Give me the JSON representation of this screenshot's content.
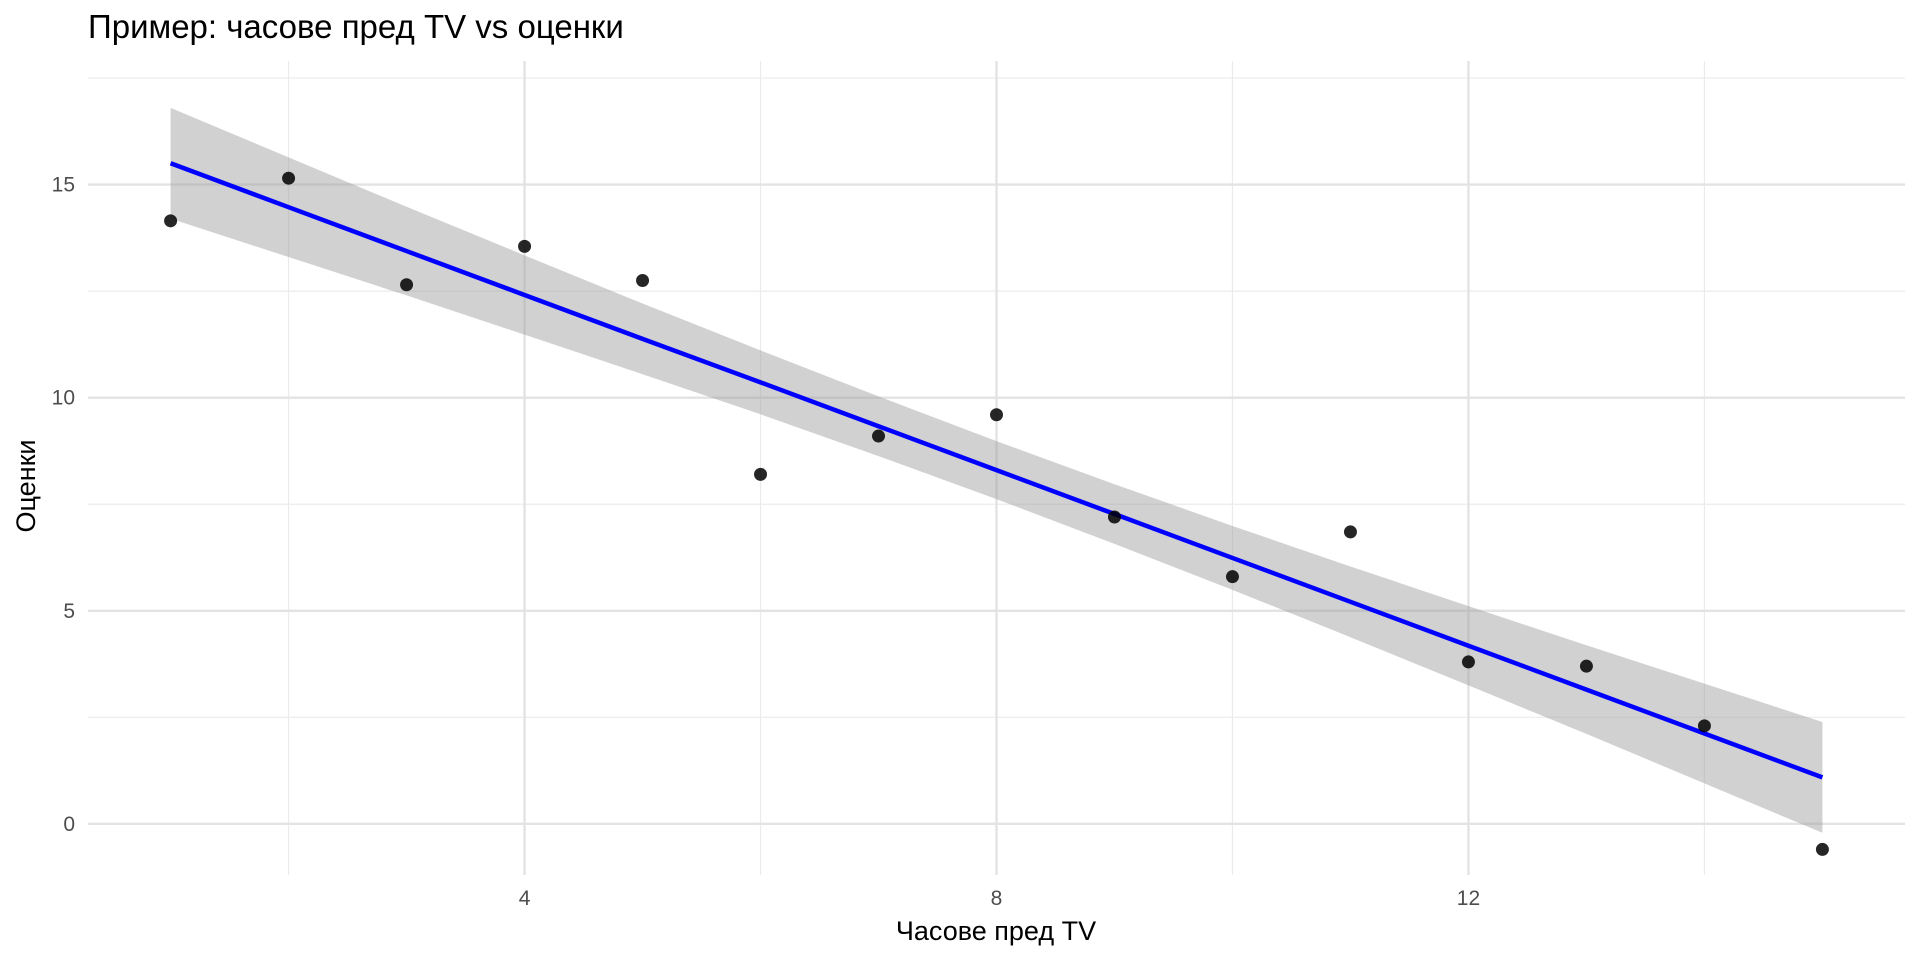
{
  "chart_data": {
    "type": "scatter",
    "title": "Пример: часове пред TV vs оценки",
    "xlabel": "Часове пред TV",
    "ylabel": "Оценки",
    "xlim": [
      0.3,
      15.7
    ],
    "ylim": [
      -1.2,
      17.9
    ],
    "x_ticks": [
      4,
      8,
      12
    ],
    "x_tick_labels": [
      "4",
      "8",
      "12"
    ],
    "x_minor": [
      2,
      6,
      10,
      14
    ],
    "y_ticks": [
      0,
      5,
      10,
      15
    ],
    "y_tick_labels": [
      "0",
      "5",
      "10",
      "15"
    ],
    "y_minor": [
      2.5,
      7.5,
      12.5,
      17.5
    ],
    "grid": true,
    "points": {
      "x": [
        1,
        2,
        3,
        4,
        5,
        6,
        7,
        8,
        9,
        10,
        11,
        12,
        13,
        14,
        15
      ],
      "y": [
        14.15,
        15.15,
        12.65,
        13.55,
        12.75,
        8.2,
        9.1,
        9.6,
        7.2,
        5.8,
        6.85,
        3.8,
        3.7,
        2.3,
        -0.6
      ]
    },
    "fit": {
      "method": "lm",
      "color": "#0000ff",
      "x": [
        1,
        2,
        3,
        4,
        5,
        6,
        7,
        8,
        9,
        10,
        11,
        12,
        13,
        14,
        15
      ],
      "y": [
        15.5,
        14.47,
        13.44,
        12.41,
        11.38,
        10.36,
        9.33,
        8.3,
        7.27,
        6.24,
        5.21,
        4.18,
        3.15,
        2.12,
        1.09
      ],
      "ci_halfwidth": [
        1.3,
        1.17,
        1.04,
        0.93,
        0.83,
        0.75,
        0.7,
        0.68,
        0.7,
        0.75,
        0.83,
        0.93,
        1.04,
        1.17,
        1.3
      ],
      "ci_color": "#999999"
    }
  }
}
